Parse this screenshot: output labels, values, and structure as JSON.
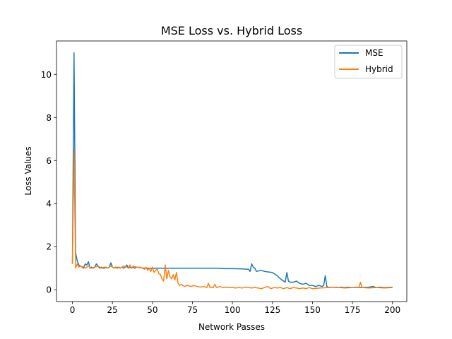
{
  "chart_data": {
    "type": "line",
    "title": "MSE Loss vs. Hybrid Loss",
    "xlabel": "Network Passes",
    "ylabel": "Loss Values",
    "xlim": [
      -9.95,
      208.95
    ],
    "ylim": [
      -0.55,
      11.55
    ],
    "xticks": [
      0,
      25,
      50,
      75,
      100,
      125,
      150,
      175,
      200
    ],
    "yticks": [
      0,
      2,
      4,
      6,
      8,
      10
    ],
    "grid": false,
    "legend_position": "top-right",
    "colors": {
      "MSE": "#1f77b4",
      "Hybrid": "#ff7f0e"
    },
    "series": [
      {
        "name": "MSE",
        "color": "#1f77b4",
        "points": [
          [
            0,
            1.2
          ],
          [
            1,
            11.0
          ],
          [
            2,
            1.7
          ],
          [
            3,
            1.35
          ],
          [
            4,
            1.15
          ],
          [
            5,
            1.1
          ],
          [
            6,
            1.05
          ],
          [
            7,
            1.0
          ],
          [
            8,
            1.2
          ],
          [
            9,
            1.15
          ],
          [
            10,
            1.3
          ],
          [
            11,
            1.0
          ],
          [
            12,
            1.05
          ],
          [
            13,
            1.0
          ],
          [
            14,
            1.05
          ],
          [
            15,
            1.2
          ],
          [
            16,
            1.1
          ],
          [
            17,
            1.0
          ],
          [
            18,
            1.05
          ],
          [
            19,
            1.0
          ],
          [
            20,
            1.0
          ],
          [
            21,
            1.05
          ],
          [
            22,
            1.0
          ],
          [
            23,
            1.05
          ],
          [
            24,
            1.25
          ],
          [
            25,
            1.05
          ],
          [
            26,
            1.0
          ],
          [
            27,
            1.05
          ],
          [
            28,
            1.0
          ],
          [
            29,
            1.05
          ],
          [
            30,
            1.0
          ],
          [
            31,
            1.05
          ],
          [
            32,
            1.0
          ],
          [
            33,
            1.05
          ],
          [
            34,
            1.15
          ],
          [
            35,
            1.0
          ],
          [
            36,
            1.05
          ],
          [
            37,
            1.0
          ],
          [
            38,
            1.05
          ],
          [
            39,
            1.0
          ],
          [
            40,
            1.05
          ],
          [
            45,
            1.0
          ],
          [
            50,
            1.0
          ],
          [
            55,
            1.0
          ],
          [
            60,
            1.0
          ],
          [
            65,
            1.0
          ],
          [
            70,
            1.0
          ],
          [
            75,
            1.0
          ],
          [
            80,
            1.0
          ],
          [
            85,
            1.0
          ],
          [
            90,
            1.0
          ],
          [
            95,
            0.98
          ],
          [
            100,
            0.98
          ],
          [
            105,
            0.97
          ],
          [
            110,
            0.95
          ],
          [
            111,
            0.85
          ],
          [
            112,
            1.2
          ],
          [
            113,
            1.05
          ],
          [
            114,
            1.0
          ],
          [
            115,
            0.85
          ],
          [
            118,
            0.9
          ],
          [
            120,
            0.85
          ],
          [
            125,
            0.8
          ],
          [
            128,
            0.65
          ],
          [
            130,
            0.5
          ],
          [
            132,
            0.4
          ],
          [
            133,
            0.35
          ],
          [
            134,
            0.8
          ],
          [
            135,
            0.4
          ],
          [
            136,
            0.35
          ],
          [
            138,
            0.35
          ],
          [
            140,
            0.4
          ],
          [
            142,
            0.3
          ],
          [
            144,
            0.25
          ],
          [
            146,
            0.3
          ],
          [
            148,
            0.2
          ],
          [
            150,
            0.2
          ],
          [
            152,
            0.15
          ],
          [
            154,
            0.2
          ],
          [
            156,
            0.15
          ],
          [
            157,
            0.2
          ],
          [
            158,
            0.65
          ],
          [
            159,
            0.15
          ],
          [
            160,
            0.1
          ],
          [
            162,
            0.12
          ],
          [
            165,
            0.1
          ],
          [
            168,
            0.12
          ],
          [
            170,
            0.1
          ],
          [
            172,
            0.12
          ],
          [
            175,
            0.1
          ],
          [
            178,
            0.12
          ],
          [
            180,
            0.1
          ],
          [
            185,
            0.12
          ],
          [
            188,
            0.15
          ],
          [
            190,
            0.1
          ],
          [
            192,
            0.12
          ],
          [
            195,
            0.1
          ],
          [
            200,
            0.12
          ]
        ]
      },
      {
        "name": "Hybrid",
        "color": "#ff7f0e",
        "points": [
          [
            0,
            1.2
          ],
          [
            1,
            6.5
          ],
          [
            2,
            1.0
          ],
          [
            3,
            1.2
          ],
          [
            4,
            1.05
          ],
          [
            5,
            1.1
          ],
          [
            6,
            1.05
          ],
          [
            7,
            1.1
          ],
          [
            8,
            1.0
          ],
          [
            9,
            1.05
          ],
          [
            10,
            1.1
          ],
          [
            12,
            1.0
          ],
          [
            14,
            1.05
          ],
          [
            16,
            1.1
          ],
          [
            18,
            1.0
          ],
          [
            20,
            1.05
          ],
          [
            22,
            1.0
          ],
          [
            24,
            1.1
          ],
          [
            26,
            1.0
          ],
          [
            28,
            1.05
          ],
          [
            30,
            1.0
          ],
          [
            32,
            1.1
          ],
          [
            34,
            1.05
          ],
          [
            35,
            1.0
          ],
          [
            36,
            1.15
          ],
          [
            37,
            1.0
          ],
          [
            38,
            1.1
          ],
          [
            40,
            1.05
          ],
          [
            42,
            1.05
          ],
          [
            44,
            1.0
          ],
          [
            45,
            0.95
          ],
          [
            46,
            1.05
          ],
          [
            47,
            0.9
          ],
          [
            48,
            1.0
          ],
          [
            49,
            0.85
          ],
          [
            50,
            1.05
          ],
          [
            51,
            0.8
          ],
          [
            52,
            0.9
          ],
          [
            53,
            0.95
          ],
          [
            54,
            0.75
          ],
          [
            55,
            0.7
          ],
          [
            56,
            0.5
          ],
          [
            57,
            0.4
          ],
          [
            58,
            1.15
          ],
          [
            59,
            0.5
          ],
          [
            60,
            0.9
          ],
          [
            61,
            0.6
          ],
          [
            62,
            0.5
          ],
          [
            63,
            0.7
          ],
          [
            64,
            0.45
          ],
          [
            65,
            0.8
          ],
          [
            66,
            0.3
          ],
          [
            67,
            0.2
          ],
          [
            68,
            0.25
          ],
          [
            69,
            0.2
          ],
          [
            70,
            0.15
          ],
          [
            72,
            0.2
          ],
          [
            74,
            0.15
          ],
          [
            76,
            0.2
          ],
          [
            78,
            0.15
          ],
          [
            80,
            0.12
          ],
          [
            82,
            0.15
          ],
          [
            84,
            0.1
          ],
          [
            85,
            0.3
          ],
          [
            86,
            0.1
          ],
          [
            88,
            0.1
          ],
          [
            89,
            0.25
          ],
          [
            90,
            0.1
          ],
          [
            92,
            0.15
          ],
          [
            94,
            0.1
          ],
          [
            96,
            0.12
          ],
          [
            98,
            0.1
          ],
          [
            100,
            0.1
          ],
          [
            102,
            0.08
          ],
          [
            104,
            0.1
          ],
          [
            106,
            0.08
          ],
          [
            108,
            0.12
          ],
          [
            110,
            0.1
          ],
          [
            112,
            0.08
          ],
          [
            114,
            0.1
          ],
          [
            116,
            0.08
          ],
          [
            118,
            0.05
          ],
          [
            120,
            0.1
          ],
          [
            122,
            0.15
          ],
          [
            124,
            0.05
          ],
          [
            126,
            0.1
          ],
          [
            128,
            0.08
          ],
          [
            130,
            0.1
          ],
          [
            132,
            0.05
          ],
          [
            134,
            0.1
          ],
          [
            136,
            0.05
          ],
          [
            138,
            0.1
          ],
          [
            140,
            0.08
          ],
          [
            142,
            0.05
          ],
          [
            144,
            0.08
          ],
          [
            146,
            0.05
          ],
          [
            148,
            0.1
          ],
          [
            150,
            0.05
          ],
          [
            155,
            0.08
          ],
          [
            160,
            0.1
          ],
          [
            165,
            0.12
          ],
          [
            170,
            0.08
          ],
          [
            175,
            0.1
          ],
          [
            179,
            0.1
          ],
          [
            180,
            0.35
          ],
          [
            181,
            0.1
          ],
          [
            185,
            0.08
          ],
          [
            190,
            0.1
          ],
          [
            195,
            0.08
          ],
          [
            200,
            0.1
          ]
        ]
      }
    ]
  }
}
